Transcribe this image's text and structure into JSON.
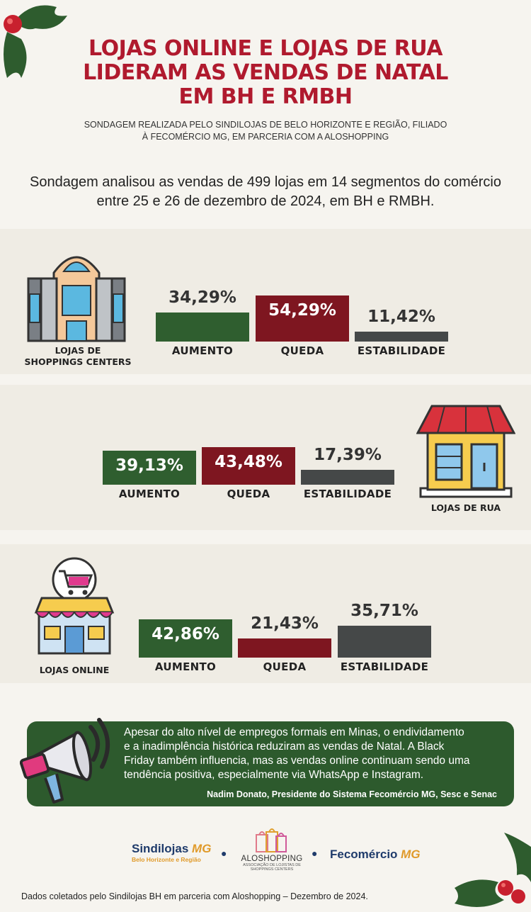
{
  "title_lines": [
    "LOJAS ONLINE E LOJAS DE RUA",
    "LIDERAM AS VENDAS DE NATAL",
    "EM BH E RMBH"
  ],
  "subtitle_lines": [
    "SONDAGEM REALIZADA PELO SINDILOJAS DE BELO HORIZONTE E REGIÃO, FILIADO",
    "À FECOMÉRCIO MG, EM PARCERIA COM A ALOSHOPPING"
  ],
  "intro_lines": [
    "Sondagem analisou as vendas de 499 lojas em 14 segmentos do comércio",
    "entre 25 e 26 de dezembro de 2024, em BH e RMBH."
  ],
  "colors": {
    "aumento": "#2f5e2f",
    "queda": "#7e1620",
    "estabilidade": "#454848",
    "title": "#b01a2e",
    "quote_bg": "#2d5a2d"
  },
  "chart_data": [
    {
      "type": "bar",
      "title": "LOJAS DE SHOPPINGS CENTERS",
      "title_lines": [
        "LOJAS DE",
        "SHOPPINGS CENTERS"
      ],
      "categories": [
        "AUMENTO",
        "QUEDA",
        "ESTABILIDADE"
      ],
      "values": [
        34.29,
        54.29,
        11.42
      ],
      "labels": [
        "34,29%",
        "54,29%",
        "11,42%"
      ]
    },
    {
      "type": "bar",
      "title": "LOJAS DE RUA",
      "title_lines": [
        "LOJAS DE RUA"
      ],
      "categories": [
        "AUMENTO",
        "QUEDA",
        "ESTABILIDADE"
      ],
      "values": [
        39.13,
        43.48,
        17.39
      ],
      "labels": [
        "39,13%",
        "43,48%",
        "17,39%"
      ]
    },
    {
      "type": "bar",
      "title": "LOJAS ONLINE",
      "title_lines": [
        "LOJAS ONLINE"
      ],
      "categories": [
        "AUMENTO",
        "QUEDA",
        "ESTABILIDADE"
      ],
      "values": [
        42.86,
        21.43,
        35.71
      ],
      "labels": [
        "42,86%",
        "21,43%",
        "35,71%"
      ]
    }
  ],
  "quote": {
    "lines": [
      "Apesar do alto nível de empregos formais em Minas, o endividamento",
      "e a inadimplência histórica reduziram as vendas de Natal. A Black",
      "Friday também influencia, mas as vendas online continuam sendo uma",
      "tendência positiva, especialmente via WhatsApp e Instagram."
    ],
    "author": "Nadim Donato, Presidente do Sistema Fecomércio MG, Sesc e Senac"
  },
  "logos": {
    "sindilojas": {
      "name": "Sindilojas",
      "suffix": "MG",
      "tagline": "Belo Horizonte e Região"
    },
    "aloshopping": {
      "name": "ALOSHOPPING",
      "tagline_lines": [
        "ASSOCIAÇÃO DE LOJISTAS DE",
        "SHOPPINGS CENTERS"
      ]
    },
    "fecomercio": {
      "name": "Fecomércio",
      "suffix": "MG"
    }
  },
  "footer": "Dados coletados pelo Sindilojas BH em parceria com Aloshopping – Dezembro de 2024."
}
